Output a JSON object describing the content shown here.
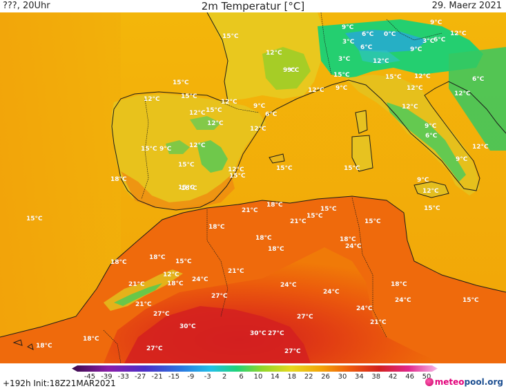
{
  "header": {
    "left": "???, 20Uhr",
    "title": "2m Temperatur [°C]",
    "date": "29. Maerz 2021"
  },
  "colors": {
    "sea_warm": "#f2b800",
    "land_hot": "#e8440a",
    "land_very_hot": "#d8251c",
    "land_mid": "#ef6d0a",
    "land_cool": "#e9c21a",
    "alps_cold": "#1fd27a",
    "alps_colder": "#2aa7d8"
  },
  "colorbar": {
    "labels": [
      "-45",
      "-39",
      "-33",
      "-27",
      "-21",
      "-15",
      "-9",
      "-3",
      "2",
      "6",
      "10",
      "14",
      "18",
      "22",
      "26",
      "30",
      "34",
      "38",
      "42",
      "46",
      "50"
    ]
  },
  "map_labels": {
    "upper_spain": [
      "15°C",
      "15°C",
      "12°C",
      "12°C",
      "9°C",
      "15°C",
      "15°C",
      "12°C",
      "9°C",
      "6°C",
      "12°C",
      "15°C",
      "9°C",
      "12°C",
      "15°C",
      "12°C",
      "15°C",
      "18°C",
      "15°C",
      "18°C"
    ],
    "alps_italy": [
      "9°C",
      "6°C",
      "0°C",
      "9°C",
      "12°C",
      "3°C",
      "6°C",
      "3°C",
      "6°C",
      "9°C",
      "12°C",
      "3°C",
      "12°C",
      "9°C",
      "15°C",
      "9°C",
      "12°C",
      "15°C",
      "12°C",
      "12°C",
      "6°C",
      "12°C",
      "12°C",
      "9°C",
      "6°C",
      "12°C",
      "9°C",
      "12°C",
      "9°C",
      "12°C",
      "15°C"
    ],
    "sea_north_africa": [
      "15°C",
      "15°C",
      "15°C",
      "18°C",
      "21°C",
      "15°C",
      "21°C",
      "15°C",
      "18°C",
      "18°C",
      "18°C",
      "18°C",
      "24°C",
      "15°C",
      "18°C",
      "18°C",
      "15°C",
      "21°C",
      "18°C",
      "24°C",
      "12°C",
      "21°C",
      "24°C",
      "27°C",
      "24°C",
      "21°C",
      "18°C",
      "27°C",
      "24°C",
      "27°C",
      "24°C",
      "21°C",
      "15°C",
      "30°C",
      "27°C",
      "30°C",
      "18°C",
      "18°C",
      "27°C",
      "27°C"
    ]
  },
  "footer": {
    "run": "+192h  Init:18Z21MAR2021",
    "logo_a": "meteo",
    "logo_b": "pool",
    "logo_c": ".org"
  }
}
